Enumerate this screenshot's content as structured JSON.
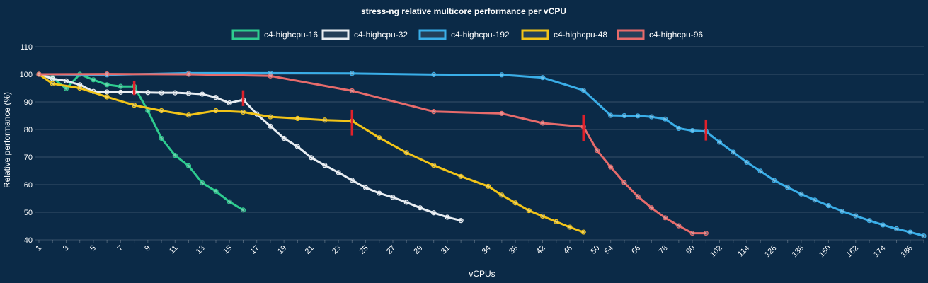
{
  "chart_data": {
    "type": "line",
    "title": "stress-ng relative multicore performance per vCPU",
    "xlabel": "vCPUs",
    "ylabel": "Relative performance (%)",
    "ylim": [
      40,
      110
    ],
    "yticks": [
      40,
      50,
      60,
      70,
      80,
      90,
      100,
      110
    ],
    "x_categories": [
      1,
      2,
      3,
      4,
      5,
      6,
      7,
      8,
      9,
      10,
      11,
      12,
      13,
      14,
      15,
      16,
      17,
      18,
      19,
      20,
      21,
      22,
      23,
      24,
      25,
      26,
      27,
      28,
      29,
      30,
      31,
      32,
      33,
      34,
      36,
      38,
      40,
      42,
      44,
      46,
      48,
      50,
      54,
      60,
      66,
      72,
      78,
      84,
      90,
      96,
      102,
      108,
      114,
      120,
      126,
      132,
      138,
      144,
      150,
      156,
      162,
      168,
      174,
      180,
      186,
      192
    ],
    "x_tick_labels": [
      "1",
      "3",
      "5",
      "7",
      "9",
      "11",
      "13",
      "15",
      "17",
      "19",
      "21",
      "23",
      "25",
      "27",
      "29",
      "31",
      "34",
      "38",
      "42",
      "46",
      "50",
      "54",
      "66",
      "78",
      "90",
      "102",
      "114",
      "126",
      "138",
      "150",
      "162",
      "174",
      "186"
    ],
    "grid": true,
    "legend_position": "top",
    "series": [
      {
        "name": "c4-highcpu-16",
        "color": "#2ecc8f",
        "x": [
          1,
          2,
          3,
          4,
          5,
          6,
          7,
          8,
          9,
          10,
          11,
          12,
          13,
          14,
          15,
          16
        ],
        "y": [
          100,
          98.8,
          94.8,
          100,
          98,
          96.2,
          95.6,
          95.6,
          86.8,
          76.8,
          70.6,
          66.8,
          60.6,
          57.6,
          53.8,
          50.8
        ]
      },
      {
        "name": "c4-highcpu-32",
        "color": "#e8edf2",
        "x": [
          1,
          2,
          3,
          4,
          5,
          6,
          7,
          8,
          9,
          10,
          11,
          12,
          13,
          14,
          15,
          16,
          17,
          18,
          19,
          20,
          21,
          22,
          23,
          24,
          25,
          26,
          27,
          28,
          29,
          30,
          31,
          32
        ],
        "y": [
          100,
          98.4,
          97.6,
          96.2,
          93.8,
          93.6,
          93.5,
          93.5,
          93.4,
          93.3,
          93.3,
          93.1,
          92.8,
          91.6,
          89.6,
          90.8,
          85.6,
          81.2,
          76.8,
          73.8,
          69.8,
          67,
          64.4,
          61.6,
          58.9,
          56.9,
          55.4,
          53.6,
          51.6,
          49.8,
          48.2,
          47
        ]
      },
      {
        "name": "c4-highcpu-192",
        "color": "#3aaee8",
        "x": [
          1,
          6,
          12,
          18,
          24,
          30,
          36,
          42,
          48,
          54,
          60,
          66,
          72,
          78,
          84,
          90,
          96,
          102,
          108,
          114,
          120,
          126,
          132,
          138,
          144,
          150,
          156,
          162,
          168,
          174,
          180,
          186,
          192
        ],
        "y": [
          100,
          99.8,
          100.4,
          100.4,
          100.3,
          99.9,
          99.8,
          98.8,
          94.2,
          85.1,
          85,
          84.9,
          84.6,
          83.8,
          80.4,
          79.6,
          79.3,
          75.4,
          71.8,
          68.1,
          64.9,
          61.6,
          59,
          56.6,
          54.4,
          52.4,
          50.4,
          48.7,
          47,
          45.4,
          44,
          42.8,
          41.4
        ]
      },
      {
        "name": "c4-highcpu-48",
        "color": "#f2c418",
        "x": [
          1,
          2,
          4,
          6,
          8,
          10,
          12,
          14,
          16,
          18,
          20,
          22,
          24,
          26,
          28,
          30,
          32,
          34,
          36,
          38,
          40,
          42,
          44,
          46,
          48
        ],
        "y": [
          100,
          96.6,
          95,
          91.8,
          88.8,
          86.8,
          85.2,
          86.8,
          86.3,
          84.6,
          84,
          83.4,
          83.1,
          77,
          71.6,
          67,
          63,
          59.4,
          56.2,
          53.4,
          50.6,
          48.6,
          46.6,
          44.6,
          42.8
        ]
      },
      {
        "name": "c4-highcpu-96",
        "color": "#e76b6b",
        "x": [
          1,
          6,
          12,
          18,
          24,
          30,
          36,
          42,
          48,
          50,
          54,
          60,
          66,
          72,
          78,
          84,
          90,
          96
        ],
        "y": [
          100,
          100.1,
          100,
          99.4,
          94,
          86.5,
          85.8,
          82.3,
          81,
          72.4,
          66.4,
          60.7,
          55.7,
          51.6,
          48,
          45.1,
          42.4,
          42.4
        ]
      }
    ],
    "markers": [
      {
        "x": 8,
        "y_from": 92.5,
        "y_to": 97.5,
        "color": "#e0212b"
      },
      {
        "x": 16,
        "y_from": 88.5,
        "y_to": 94.2,
        "color": "#e0212b"
      },
      {
        "x": 24,
        "y_from": 77.8,
        "y_to": 87.2,
        "color": "#e0212b"
      },
      {
        "x": 48,
        "y_from": 75.8,
        "y_to": 85.4,
        "color": "#e0212b"
      },
      {
        "x": 96,
        "y_from": 76,
        "y_to": 83.6,
        "color": "#e0212b"
      }
    ]
  }
}
